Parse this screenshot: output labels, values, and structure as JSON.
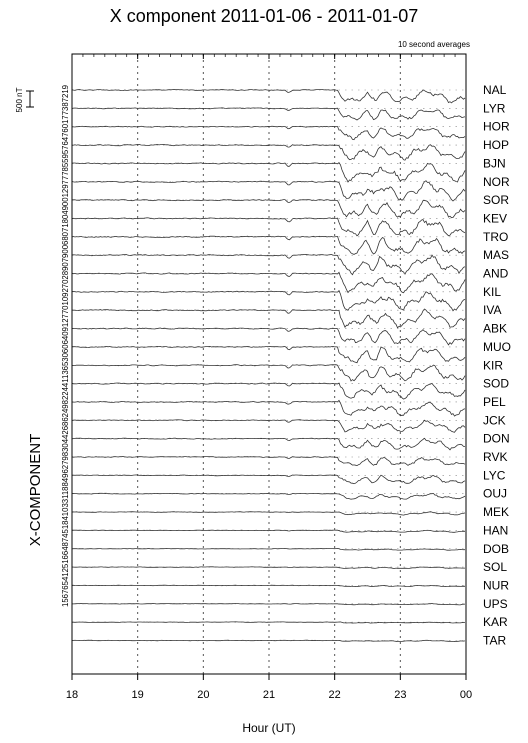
{
  "chart_data": {
    "type": "line",
    "title": "X component 2011-01-06 - 2011-01-07",
    "subtitle": "10 second averages",
    "xlabel": "Hour (UT)",
    "side_label": "X-COMPONENT",
    "scale_bar_label": "500 nT",
    "x_ticks": [
      "18",
      "19",
      "20",
      "21",
      "22",
      "23",
      "00"
    ],
    "xlim_hours": [
      18,
      24
    ],
    "grid": "dotted vertical lines at each hour",
    "baseline_values_text": "1567654125166487451841033118849627983044268624982244113653060640912770109270289079006807180490012977785595764760177387219",
    "stations": [
      "NAL",
      "LYR",
      "HOR",
      "HOP",
      "BJN",
      "NOR",
      "SOR",
      "KEV",
      "TRO",
      "MAS",
      "AND",
      "KIL",
      "IVA",
      "ABK",
      "MUO",
      "KIR",
      "SOD",
      "PEL",
      "JCK",
      "DON",
      "RVK",
      "LYC",
      "OUJ",
      "MEK",
      "HAN",
      "DOB",
      "SOL",
      "NUR",
      "UPS",
      "KAR",
      "TAR"
    ],
    "activity": [
      0.7,
      0.65,
      0.7,
      0.8,
      1.0,
      1.0,
      1.0,
      1.0,
      1.0,
      1.0,
      1.0,
      1.0,
      0.95,
      0.9,
      0.9,
      0.85,
      0.8,
      0.75,
      0.65,
      0.6,
      0.5,
      0.45,
      0.3,
      0.15,
      0.1,
      0.08,
      0.07,
      0.06,
      0.05,
      0.05,
      0.05
    ],
    "line_color": "#333333",
    "grid_color": "#555555"
  }
}
